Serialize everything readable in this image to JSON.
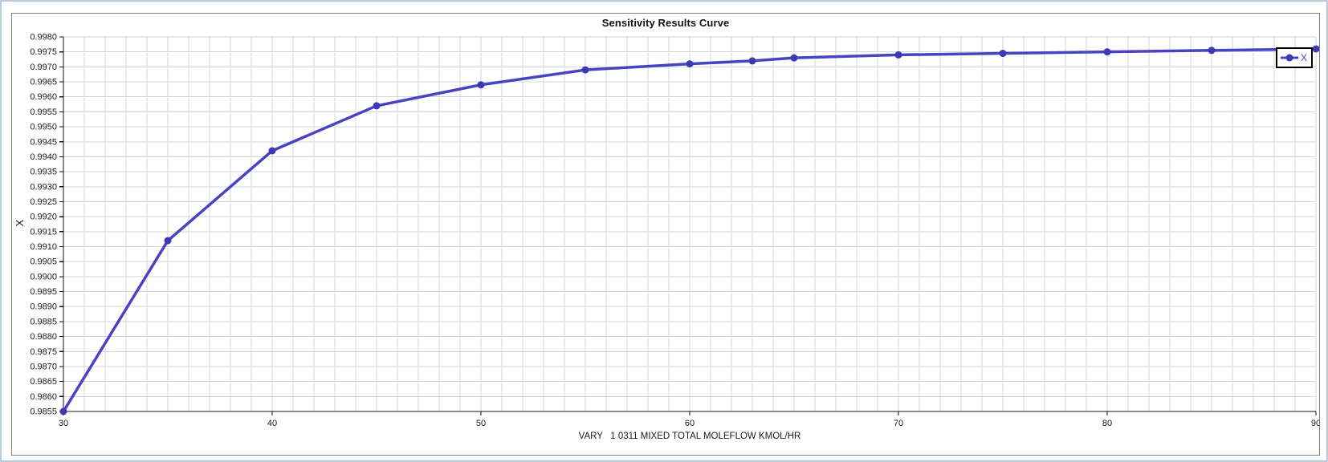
{
  "frame": {
    "outer_border_color": "#b9cadf",
    "panel_border_color": "#7b7b7b",
    "background": "#ffffff"
  },
  "chart": {
    "title": "Sensitivity Results Curve",
    "x_axis_label": "VARY   1 0311 MIXED TOTAL MOLEFLOW KMOL/HR",
    "y_axis_label": "X",
    "legend": {
      "label": "X"
    }
  },
  "chart_data": {
    "type": "line",
    "title": "Sensitivity Results Curve",
    "xlabel": "VARY   1 0311 MIXED TOTAL MOLEFLOW KMOL/HR",
    "ylabel": "X",
    "series": [
      {
        "name": "X",
        "x": [
          30,
          35,
          40,
          45,
          50,
          55,
          60,
          63,
          65,
          70,
          75,
          80,
          85,
          90
        ],
        "y": [
          0.9855,
          0.9912,
          0.9942,
          0.9957,
          0.9964,
          0.9969,
          0.9971,
          0.9972,
          0.9973,
          0.9974,
          0.99745,
          0.9975,
          0.99755,
          0.9976
        ]
      }
    ],
    "xlim": [
      30,
      90
    ],
    "ylim": [
      0.9855,
      0.998
    ],
    "x_major_ticks": [
      30,
      40,
      50,
      60,
      70,
      80,
      90
    ],
    "x_minor_step": 1,
    "y_tick_step": 0.0005,
    "y_tick_decimals": 4,
    "grid": true,
    "legend_position": "top-right",
    "colors": {
      "line": "#4744c4",
      "marker": "#3c39b4",
      "grid": "#d6d6d6",
      "axis": "#111111",
      "tick_text": "#1a1a1a",
      "legend_text": "#4744c4"
    }
  }
}
